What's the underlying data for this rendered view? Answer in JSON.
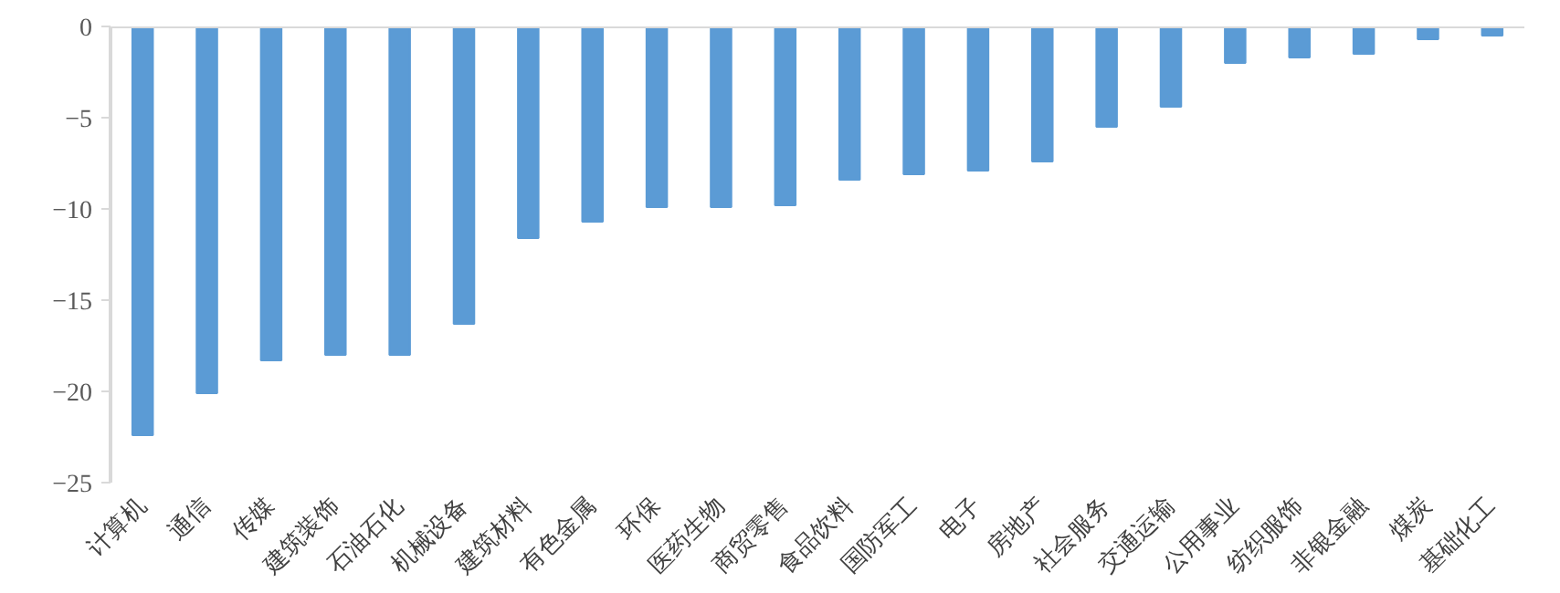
{
  "chart_data": {
    "type": "bar",
    "categories": [
      "计算机",
      "通信",
      "传媒",
      "建筑装饰",
      "石油石化",
      "机械设备",
      "建筑材料",
      "有色金属",
      "环保",
      "医药生物",
      "商贸零售",
      "食品饮料",
      "国防军工",
      "电子",
      "房地产",
      "社会服务",
      "交通运输",
      "公用事业",
      "纺织服饰",
      "非银金融",
      "煤炭",
      "基础化工"
    ],
    "values": [
      -22.4,
      -20.1,
      -18.3,
      -18.0,
      -18.0,
      -16.3,
      -11.6,
      -10.7,
      -9.9,
      -9.9,
      -9.8,
      -8.4,
      -8.1,
      -7.9,
      -7.4,
      -5.5,
      -4.4,
      -2.0,
      -1.7,
      -1.5,
      -0.7,
      -0.5
    ],
    "color": "#5b9bd5",
    "ylim": [
      -25,
      0
    ],
    "yticks": [
      -25,
      -20,
      -15,
      -10,
      -5,
      0
    ],
    "grid": false
  }
}
